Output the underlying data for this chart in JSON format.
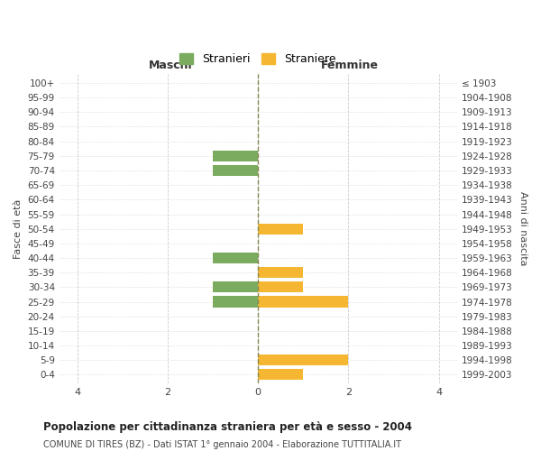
{
  "age_groups_top_to_bottom": [
    "100+",
    "95-99",
    "90-94",
    "85-89",
    "80-84",
    "75-79",
    "70-74",
    "65-69",
    "60-64",
    "55-59",
    "50-54",
    "45-49",
    "40-44",
    "35-39",
    "30-34",
    "25-29",
    "20-24",
    "15-19",
    "10-14",
    "5-9",
    "0-4"
  ],
  "birth_years_top_to_bottom": [
    "≤ 1903",
    "1904-1908",
    "1909-1913",
    "1914-1918",
    "1919-1923",
    "1924-1928",
    "1929-1933",
    "1934-1938",
    "1939-1943",
    "1944-1948",
    "1949-1953",
    "1954-1958",
    "1959-1963",
    "1964-1968",
    "1969-1973",
    "1974-1978",
    "1979-1983",
    "1984-1988",
    "1989-1993",
    "1994-1998",
    "1999-2003"
  ],
  "males_top_to_bottom": [
    0,
    0,
    0,
    0,
    0,
    1,
    1,
    0,
    0,
    0,
    0,
    0,
    1,
    0,
    1,
    1,
    0,
    0,
    0,
    0,
    0
  ],
  "females_top_to_bottom": [
    0,
    0,
    0,
    0,
    0,
    0,
    0,
    0,
    0,
    0,
    1,
    0,
    0,
    1,
    1,
    2,
    0,
    0,
    0,
    2,
    1
  ],
  "male_color": "#7aab5e",
  "female_color": "#f5b731",
  "male_label": "Stranieri",
  "female_label": "Straniere",
  "title": "Popolazione per cittadinanza straniera per età e sesso - 2004",
  "subtitle": "COMUNE DI TIRES (BZ) - Dati ISTAT 1° gennaio 2004 - Elaborazione TUTTITALIA.IT",
  "header_left": "Maschi",
  "header_right": "Femmine",
  "ylabel_left": "Fasce di età",
  "ylabel_right": "Anni di nascita",
  "xlim": 4.4,
  "background_color": "#ffffff",
  "grid_color": "#cccccc",
  "bar_height": 0.75
}
